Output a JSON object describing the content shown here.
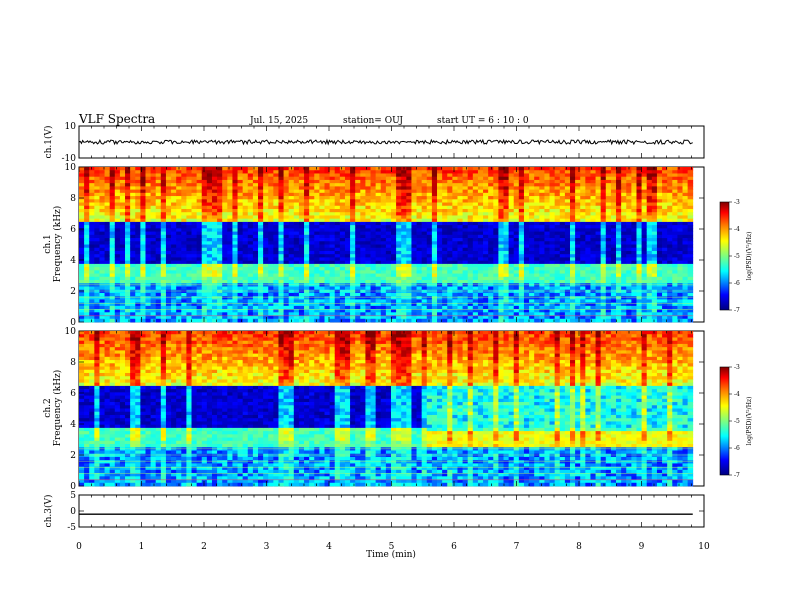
{
  "header": {
    "title": "VLF Spectra",
    "date": "Jul. 15, 2025",
    "station": "station= OUJ",
    "start": "start UT =  6 : 10 : 0"
  },
  "chart_data": {
    "type": "heatmap",
    "panels": [
      {
        "id": "ch1-waveform",
        "ylabel": "ch.1(V)",
        "ylim": [
          -10,
          10
        ],
        "yticks": [
          "10",
          "-10"
        ],
        "trace_level": 0
      },
      {
        "id": "ch1-spectrogram",
        "ylabel_line1": "ch.1",
        "ylabel_line2": "Frequency (kHz)",
        "ylim": [
          0,
          10
        ],
        "yticks": [
          "0",
          "2",
          "4",
          "6",
          "8",
          "10"
        ],
        "colorbar": {
          "label": "log(PSD)(V²/Hz)",
          "range": [
            -7,
            -3
          ],
          "ticks": [
            "-3",
            "-4",
            "-5",
            "-6",
            "-7"
          ]
        }
      },
      {
        "id": "ch2-spectrogram",
        "ylabel_line1": "ch.2",
        "ylabel_line2": "Frequency (kHz)",
        "ylim": [
          0,
          10
        ],
        "yticks": [
          "0",
          "2",
          "4",
          "6",
          "8",
          "10"
        ],
        "colorbar": {
          "label": "log(PSD)(V²/Hz)",
          "range": [
            -7,
            -3
          ],
          "ticks": [
            "-3",
            "-4",
            "-5",
            "-6",
            "-7"
          ]
        }
      },
      {
        "id": "ch3-waveform",
        "ylabel": "ch.3(V)",
        "ylim": [
          -5,
          5
        ],
        "yticks": [
          "5",
          "0",
          "-5"
        ],
        "trace_level": -1
      }
    ],
    "xlabel": "Time (min)",
    "xlim": [
      0,
      10
    ],
    "xticks": [
      "0",
      "1",
      "2",
      "3",
      "4",
      "5",
      "6",
      "7",
      "8",
      "9",
      "10"
    ],
    "data_end_min": 9.82,
    "colormap": [
      "#00007f",
      "#0000ff",
      "#00ffff",
      "#7fff7f",
      "#ffff00",
      "#ff7f00",
      "#ff0000",
      "#7f0000"
    ]
  }
}
